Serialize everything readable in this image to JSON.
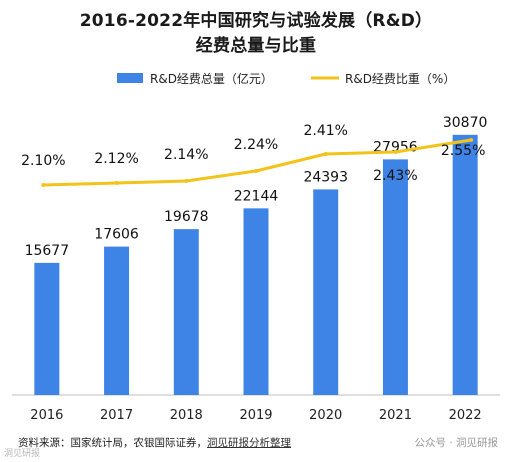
{
  "chart_data": {
    "type": "bar+line",
    "title_line1": "2016-2022年中国研究与试验发展（R&D）",
    "title_line2": "经费总量与比重",
    "categories": [
      "2016",
      "2017",
      "2018",
      "2019",
      "2020",
      "2021",
      "2022"
    ],
    "series": [
      {
        "name": "R&D经费总量（亿元）",
        "type": "bar",
        "color": "#3e84e6",
        "values": [
          15677,
          17606,
          19678,
          22144,
          24393,
          27956,
          30870
        ]
      },
      {
        "name": "R&D经费比重（%）",
        "type": "line",
        "color": "#f2c319",
        "values": [
          2.1,
          2.12,
          2.14,
          2.24,
          2.41,
          2.43,
          2.55
        ],
        "labels": [
          "2.10%",
          "2.12%",
          "2.14%",
          "2.24%",
          "2.41%",
          "2.43%",
          "2.55%"
        ]
      }
    ],
    "bar_ylim": [
      0,
      35000
    ],
    "line_ylim": [
      0,
      3.0
    ],
    "grid": false,
    "legend": "top"
  },
  "footer": {
    "source_prefix": "资料来源：国家统计局，农银国际证券，",
    "source_link": "洞见研报分析整理",
    "watermark": "公众号 · 洞见研报",
    "corner_mark": "洞见研报"
  }
}
